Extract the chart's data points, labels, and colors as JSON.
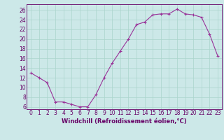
{
  "x": [
    0,
    1,
    2,
    3,
    4,
    5,
    6,
    7,
    8,
    9,
    10,
    11,
    12,
    13,
    14,
    15,
    16,
    17,
    18,
    19,
    20,
    21,
    22,
    23
  ],
  "y": [
    13,
    12,
    11,
    7,
    7,
    6.5,
    6,
    6,
    8.5,
    12,
    15,
    17.5,
    20,
    23,
    23.5,
    25,
    25.2,
    25.2,
    26.2,
    25.2,
    25,
    24.5,
    21,
    16.5
  ],
  "line_color": "#993399",
  "marker": "+",
  "background_color": "#cce8e8",
  "grid_color": "#aad4cc",
  "axis_color": "#660066",
  "spine_color": "#660066",
  "xlabel": "Windchill (Refroidissement éolien,°C)",
  "xlim": [
    -0.5,
    23.5
  ],
  "ylim": [
    5.5,
    27.2
  ],
  "yticks": [
    6,
    8,
    10,
    12,
    14,
    16,
    18,
    20,
    22,
    24,
    26
  ],
  "xticks": [
    0,
    1,
    2,
    3,
    4,
    5,
    6,
    7,
    8,
    9,
    10,
    11,
    12,
    13,
    14,
    15,
    16,
    17,
    18,
    19,
    20,
    21,
    22,
    23
  ],
  "tick_fontsize": 5.5,
  "label_fontsize": 6.0
}
